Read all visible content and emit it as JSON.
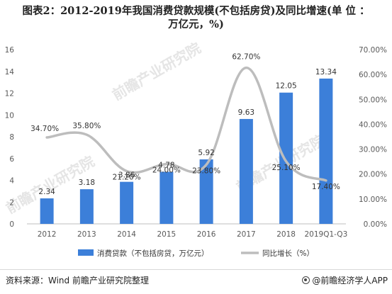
{
  "title": {
    "line1": "图表2：2012-2019年我国消费贷款规模(不包括房贷)及同比增速(单 位 ：",
    "line2": "万亿元，%)"
  },
  "chart_data": {
    "type": "bar",
    "categories": [
      "2012",
      "2013",
      "2014",
      "2015",
      "2016",
      "2017",
      "2018",
      "2019Q1-Q3"
    ],
    "series": [
      {
        "name": "消费贷款（不包括房贷，万亿元）",
        "type": "bar",
        "axis": "left",
        "values": [
          2.34,
          3.18,
          3.86,
          4.78,
          5.92,
          9.63,
          12.05,
          13.34
        ],
        "labels": [
          "2.34",
          "3.18",
          "3.86",
          "4.78",
          "5.92",
          "9.63",
          "12.05",
          "13.34"
        ]
      },
      {
        "name": "同比增长（%）",
        "type": "line",
        "axis": "right",
        "smooth": true,
        "values": [
          34.7,
          35.8,
          21.2,
          24.0,
          23.8,
          62.7,
          25.1,
          17.4
        ],
        "labels": [
          "34.70%",
          "35.80%",
          "21.20%",
          "24.00%",
          "23.80%",
          "62.70%",
          "25.10%",
          "17.40%"
        ]
      }
    ],
    "y_left": {
      "min": 0,
      "max": 16,
      "ticks": [
        "0",
        "2",
        "4",
        "6",
        "8",
        "10",
        "12",
        "14",
        "16"
      ]
    },
    "y_right": {
      "min": 0,
      "max": 70,
      "ticks": [
        "0.00%",
        "10.00%",
        "20.00%",
        "30.00%",
        "40.00%",
        "50.00%",
        "60.00%",
        "70.00%"
      ]
    },
    "grid": false,
    "legend": "bottom",
    "colors": {
      "bar": "#3c7fd9",
      "line": "#bdbdbd",
      "text": "#595959",
      "axis": "#bfbfbf"
    }
  },
  "watermark": {
    "text": "前瞻产业研究院"
  },
  "footer": {
    "source": "资料来源：Wind 前瞻产业研究院整理",
    "brand": "@前瞻经济学人APP"
  }
}
